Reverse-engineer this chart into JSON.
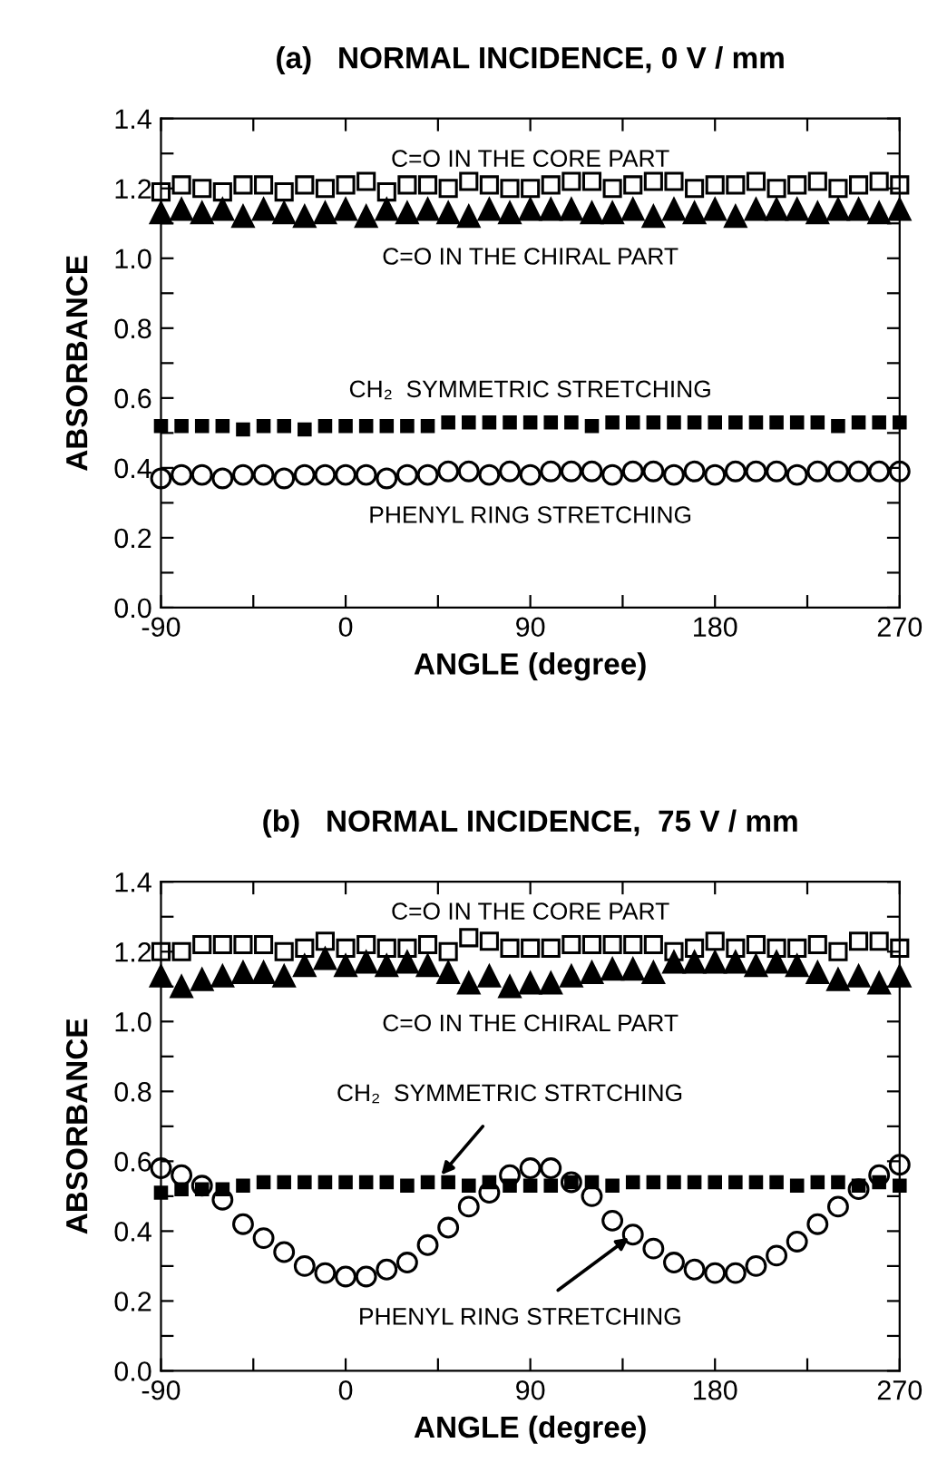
{
  "chart_data": [
    {
      "type": "scatter",
      "title": "(a)   NORMAL INCIDENCE, 0 V / mm",
      "xlabel": "ANGLE (degree)",
      "ylabel": "ABSORBANCE",
      "x": [
        -90,
        -80,
        -70,
        -60,
        -50,
        -40,
        -30,
        -20,
        -10,
        0,
        10,
        20,
        30,
        40,
        50,
        60,
        70,
        80,
        90,
        100,
        110,
        120,
        130,
        140,
        150,
        160,
        170,
        180,
        190,
        200,
        210,
        220,
        230,
        240,
        250,
        260,
        270
      ],
      "series": [
        {
          "color": "#000000",
          "marker": "square",
          "values": [
            1.19,
            1.21,
            1.2,
            1.19,
            1.21,
            1.21,
            1.19,
            1.21,
            1.2,
            1.21,
            1.22,
            1.19,
            1.21,
            1.21,
            1.2,
            1.22,
            1.21,
            1.2,
            1.2,
            1.21,
            1.22,
            1.22,
            1.2,
            1.21,
            1.22,
            1.22,
            1.2,
            1.21,
            1.21,
            1.22,
            1.2,
            1.21,
            1.22,
            1.2,
            1.21,
            1.22,
            1.21
          ]
        },
        {
          "color": "#000000",
          "marker": "triangle",
          "values": [
            1.13,
            1.14,
            1.13,
            1.14,
            1.12,
            1.14,
            1.13,
            1.12,
            1.13,
            1.14,
            1.12,
            1.14,
            1.13,
            1.14,
            1.13,
            1.12,
            1.14,
            1.13,
            1.14,
            1.14,
            1.14,
            1.13,
            1.13,
            1.14,
            1.12,
            1.14,
            1.13,
            1.14,
            1.12,
            1.14,
            1.14,
            1.14,
            1.13,
            1.14,
            1.14,
            1.13,
            1.14
          ]
        },
        {
          "color": "#000000",
          "marker": "square",
          "values": [
            0.52,
            0.52,
            0.52,
            0.52,
            0.51,
            0.52,
            0.52,
            0.51,
            0.52,
            0.52,
            0.52,
            0.52,
            0.52,
            0.52,
            0.53,
            0.53,
            0.53,
            0.53,
            0.53,
            0.53,
            0.53,
            0.52,
            0.53,
            0.53,
            0.53,
            0.53,
            0.53,
            0.53,
            0.53,
            0.53,
            0.53,
            0.53,
            0.53,
            0.52,
            0.53,
            0.53,
            0.53
          ]
        },
        {
          "color": "#000000",
          "marker": "circle",
          "values": [
            0.37,
            0.38,
            0.38,
            0.37,
            0.38,
            0.38,
            0.37,
            0.38,
            0.38,
            0.38,
            0.38,
            0.37,
            0.38,
            0.38,
            0.39,
            0.39,
            0.38,
            0.39,
            0.38,
            0.39,
            0.39,
            0.39,
            0.38,
            0.39,
            0.39,
            0.38,
            0.39,
            0.38,
            0.39,
            0.39,
            0.39,
            0.38,
            0.39,
            0.39,
            0.39,
            0.39,
            0.39
          ]
        }
      ],
      "annotations": [
        {
          "text": "C=O IN THE CORE PART",
          "x": 90,
          "y": 1.21
        },
        {
          "text": "C=O IN THE CHIRAL PART",
          "x": 90,
          "y": 1.13
        },
        {
          "text": "CH₂  SYMMETRIC STRETCHING",
          "x": 90,
          "y": 0.52
        },
        {
          "text": "PHENYL RING STRETCHING",
          "x": 90,
          "y": 0.38
        }
      ],
      "xlim": [
        -90,
        270
      ],
      "xticks": [
        -90,
        {
          "value": -45,
          "label": null
        },
        0,
        {
          "value": 45,
          "label": null
        },
        90,
        {
          "value": 135,
          "label": null
        },
        180,
        {
          "value": 225,
          "label": null
        },
        270
      ],
      "ylim": [
        0,
        1.4
      ],
      "yticks": [
        {
          "value": 0,
          "label": "0.0"
        },
        {
          "value": 0.1,
          "label": null
        },
        0.2,
        {
          "value": 0.3,
          "label": null
        },
        0.4,
        {
          "value": 0.5,
          "label": null
        },
        0.6,
        {
          "value": 0.7,
          "label": null
        },
        0.8,
        {
          "value": 0.9,
          "label": null
        },
        {
          "value": 1,
          "label": "1.0"
        },
        {
          "value": 1.1,
          "label": null
        },
        1.2,
        {
          "value": 1.3,
          "label": null
        },
        1.4
      ],
      "grid": false,
      "legend": false,
      "line_style": "none"
    },
    {
      "type": "scatter",
      "title": "(b)   NORMAL INCIDENCE,  75 V / mm",
      "xlabel": "ANGLE (degree)",
      "ylabel": "ABSORBANCE",
      "x": [
        -90,
        -80,
        -70,
        -60,
        -50,
        -40,
        -30,
        -20,
        -10,
        0,
        10,
        20,
        30,
        40,
        50,
        60,
        70,
        80,
        90,
        100,
        110,
        120,
        130,
        140,
        150,
        160,
        170,
        180,
        190,
        200,
        210,
        220,
        230,
        240,
        250,
        260,
        270
      ],
      "series": [
        {
          "color": "#000000",
          "marker": "square",
          "values": [
            1.2,
            1.2,
            1.22,
            1.22,
            1.22,
            1.22,
            1.2,
            1.21,
            1.23,
            1.21,
            1.22,
            1.21,
            1.21,
            1.22,
            1.2,
            1.24,
            1.23,
            1.21,
            1.21,
            1.21,
            1.22,
            1.22,
            1.22,
            1.22,
            1.22,
            1.2,
            1.21,
            1.23,
            1.21,
            1.22,
            1.21,
            1.21,
            1.22,
            1.2,
            1.23,
            1.23,
            1.21
          ]
        },
        {
          "color": "#000000",
          "marker": "triangle",
          "values": [
            1.13,
            1.1,
            1.12,
            1.13,
            1.14,
            1.14,
            1.13,
            1.16,
            1.18,
            1.16,
            1.17,
            1.16,
            1.17,
            1.16,
            1.14,
            1.11,
            1.13,
            1.1,
            1.11,
            1.11,
            1.13,
            1.14,
            1.15,
            1.15,
            1.14,
            1.17,
            1.17,
            1.17,
            1.17,
            1.16,
            1.17,
            1.16,
            1.14,
            1.12,
            1.13,
            1.11,
            1.13
          ]
        },
        {
          "color": "#000000",
          "marker": "square",
          "values": [
            0.51,
            0.52,
            0.52,
            0.52,
            0.53,
            0.54,
            0.54,
            0.54,
            0.54,
            0.54,
            0.54,
            0.54,
            0.53,
            0.54,
            0.54,
            0.53,
            0.54,
            0.53,
            0.53,
            0.53,
            0.54,
            0.54,
            0.53,
            0.54,
            0.54,
            0.54,
            0.54,
            0.54,
            0.54,
            0.54,
            0.54,
            0.53,
            0.54,
            0.54,
            0.53,
            0.54,
            0.53
          ]
        },
        {
          "color": "#000000",
          "marker": "circle",
          "values": [
            0.58,
            0.56,
            0.53,
            0.49,
            0.42,
            0.38,
            0.34,
            0.3,
            0.28,
            0.27,
            0.27,
            0.29,
            0.31,
            0.36,
            0.41,
            0.47,
            0.51,
            0.56,
            0.58,
            0.58,
            0.54,
            0.5,
            0.43,
            0.39,
            0.35,
            0.31,
            0.29,
            0.28,
            0.28,
            0.3,
            0.33,
            0.37,
            0.42,
            0.47,
            0.52,
            0.56,
            0.59
          ]
        }
      ],
      "annotations": [
        {
          "text": "C=O IN THE CORE PART",
          "x": 90,
          "y": 1.22
        },
        {
          "text": "C=O IN THE CHIRAL PART",
          "x": 90,
          "y": 1.13
        },
        {
          "text": "CH₂  SYMMETRIC STRTCHING",
          "x": 45,
          "y": 0.55
        },
        {
          "text": "PHENYL RING STRETCHING",
          "x": 140,
          "y": 0.39
        }
      ],
      "xlim": [
        -90,
        270
      ],
      "xticks": [
        -90,
        {
          "value": -45,
          "label": null
        },
        0,
        {
          "value": 45,
          "label": null
        },
        90,
        {
          "value": 135,
          "label": null
        },
        180,
        {
          "value": 225,
          "label": null
        },
        270
      ],
      "ylim": [
        0,
        1.4
      ],
      "yticks": [
        {
          "value": 0,
          "label": "0.0"
        },
        {
          "value": 0.1,
          "label": null
        },
        0.2,
        {
          "value": 0.3,
          "label": null
        },
        0.4,
        {
          "value": 0.5,
          "label": null
        },
        0.6,
        {
          "value": 0.7,
          "label": null
        },
        0.8,
        {
          "value": 0.9,
          "label": null
        },
        {
          "value": 1,
          "label": "1.0"
        },
        {
          "value": 1.1,
          "label": null
        },
        1.2,
        {
          "value": 1.3,
          "label": null
        },
        1.4
      ],
      "grid": false,
      "legend": false,
      "line_style": "none"
    }
  ]
}
